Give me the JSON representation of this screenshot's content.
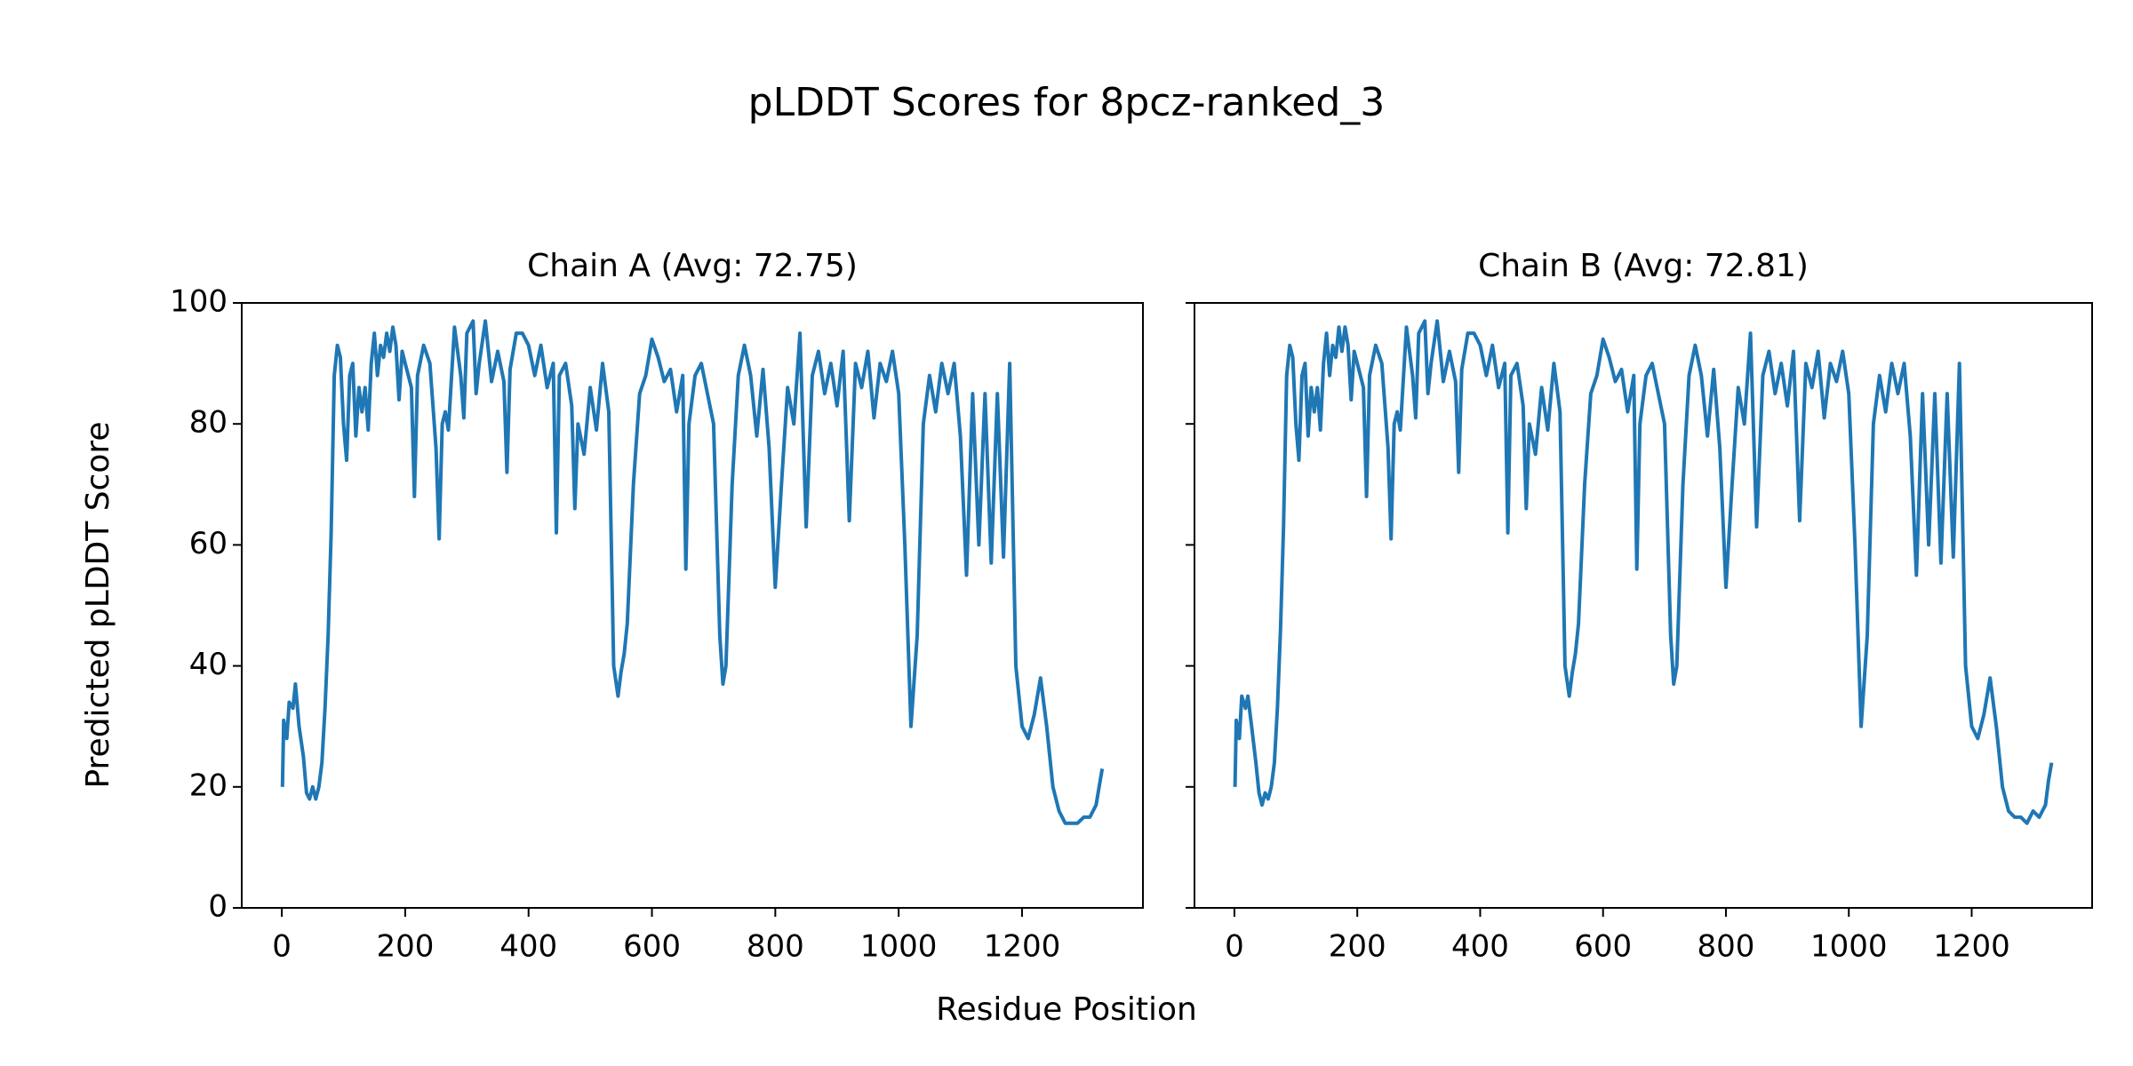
{
  "title": "pLDDT Scores for 8pcz-ranked_3",
  "x_label": "Residue Position",
  "y_label": "Predicted pLDDT Score",
  "chart_data": [
    {
      "type": "line",
      "title": "Chain A (Avg: 72.75)",
      "x": [
        1,
        3,
        8,
        12,
        18,
        22,
        28,
        35,
        40,
        45,
        50,
        55,
        60,
        65,
        70,
        75,
        80,
        85,
        90,
        95,
        100,
        105,
        110,
        115,
        120,
        125,
        130,
        135,
        140,
        145,
        150,
        155,
        160,
        165,
        170,
        175,
        180,
        185,
        190,
        195,
        200,
        210,
        215,
        220,
        230,
        240,
        250,
        255,
        260,
        265,
        270,
        280,
        290,
        295,
        300,
        310,
        315,
        320,
        330,
        340,
        350,
        360,
        365,
        370,
        380,
        390,
        400,
        410,
        420,
        430,
        440,
        445,
        450,
        460,
        470,
        475,
        480,
        490,
        500,
        510,
        520,
        530,
        538,
        545,
        550,
        555,
        560,
        570,
        580,
        590,
        600,
        610,
        620,
        630,
        640,
        650,
        655,
        660,
        670,
        680,
        690,
        700,
        710,
        715,
        720,
        730,
        740,
        750,
        760,
        770,
        780,
        790,
        800,
        810,
        820,
        830,
        840,
        850,
        860,
        870,
        880,
        890,
        900,
        910,
        920,
        930,
        940,
        950,
        960,
        970,
        980,
        990,
        1000,
        1010,
        1020,
        1030,
        1040,
        1050,
        1060,
        1070,
        1080,
        1090,
        1100,
        1110,
        1120,
        1130,
        1140,
        1150,
        1160,
        1170,
        1180,
        1190,
        1200,
        1210,
        1220,
        1230,
        1240,
        1250,
        1260,
        1270,
        1280,
        1290,
        1300,
        1310,
        1320,
        1325,
        1330
      ],
      "series": [
        {
          "name": "Chain A",
          "color": "#1f77b4",
          "values": [
            20,
            31,
            28,
            34,
            33,
            37,
            30,
            25,
            19,
            18,
            20,
            18,
            20,
            24,
            33,
            45,
            62,
            88,
            93,
            91,
            80,
            74,
            88,
            90,
            78,
            86,
            82,
            86,
            79,
            90,
            95,
            88,
            93,
            91,
            95,
            92,
            96,
            93,
            84,
            92,
            90,
            86,
            68,
            88,
            93,
            90,
            76,
            61,
            80,
            82,
            79,
            96,
            88,
            81,
            95,
            97,
            85,
            90,
            97,
            87,
            92,
            87,
            72,
            89,
            95,
            95,
            93,
            88,
            93,
            86,
            90,
            62,
            88,
            90,
            83,
            66,
            80,
            75,
            86,
            79,
            90,
            82,
            40,
            35,
            39,
            42,
            47,
            70,
            85,
            88,
            94,
            91,
            87,
            89,
            82,
            88,
            56,
            80,
            88,
            90,
            85,
            80,
            45,
            37,
            40,
            70,
            88,
            93,
            88,
            78,
            89,
            76,
            53,
            70,
            86,
            80,
            95,
            63,
            88,
            92,
            85,
            90,
            83,
            92,
            64,
            90,
            86,
            92,
            81,
            90,
            87,
            92,
            85,
            60,
            30,
            45,
            80,
            88,
            82,
            90,
            85,
            90,
            78,
            55,
            85,
            60,
            85,
            57,
            85,
            58,
            90,
            40,
            30,
            28,
            32,
            38,
            30,
            20,
            16,
            14,
            14,
            14,
            15,
            15,
            17,
            20,
            23
          ]
        }
      ],
      "xlim": [
        -65,
        1396
      ],
      "ylim": [
        0,
        100
      ],
      "xticks": [
        0,
        200,
        400,
        600,
        800,
        1000,
        1200
      ],
      "yticks": [
        0,
        20,
        40,
        60,
        80,
        100
      ]
    },
    {
      "type": "line",
      "title": "Chain B (Avg: 72.81)",
      "x": [
        1,
        3,
        8,
        12,
        18,
        22,
        28,
        35,
        40,
        45,
        50,
        55,
        60,
        65,
        70,
        75,
        80,
        85,
        90,
        95,
        100,
        105,
        110,
        115,
        120,
        125,
        130,
        135,
        140,
        145,
        150,
        155,
        160,
        165,
        170,
        175,
        180,
        185,
        190,
        195,
        200,
        210,
        215,
        220,
        230,
        240,
        250,
        255,
        260,
        265,
        270,
        280,
        290,
        295,
        300,
        310,
        315,
        320,
        330,
        340,
        350,
        360,
        365,
        370,
        380,
        390,
        400,
        410,
        420,
        430,
        440,
        445,
        450,
        460,
        470,
        475,
        480,
        490,
        500,
        510,
        520,
        530,
        538,
        545,
        550,
        555,
        560,
        570,
        580,
        590,
        600,
        610,
        620,
        630,
        640,
        650,
        655,
        660,
        670,
        680,
        690,
        700,
        710,
        715,
        720,
        730,
        740,
        750,
        760,
        770,
        780,
        790,
        800,
        810,
        820,
        830,
        840,
        850,
        860,
        870,
        880,
        890,
        900,
        910,
        920,
        930,
        940,
        950,
        960,
        970,
        980,
        990,
        1000,
        1010,
        1020,
        1030,
        1040,
        1050,
        1060,
        1070,
        1080,
        1090,
        1100,
        1110,
        1120,
        1130,
        1140,
        1150,
        1160,
        1170,
        1180,
        1190,
        1200,
        1210,
        1220,
        1230,
        1240,
        1250,
        1260,
        1270,
        1280,
        1290,
        1300,
        1310,
        1320,
        1325,
        1330
      ],
      "series": [
        {
          "name": "Chain B",
          "color": "#1f77b4",
          "values": [
            20,
            31,
            28,
            35,
            33,
            35,
            30,
            24,
            19,
            17,
            19,
            18,
            20,
            24,
            33,
            46,
            63,
            88,
            93,
            91,
            80,
            74,
            88,
            90,
            78,
            86,
            82,
            86,
            79,
            90,
            95,
            88,
            93,
            91,
            96,
            92,
            96,
            93,
            84,
            92,
            90,
            86,
            68,
            88,
            93,
            90,
            76,
            61,
            80,
            82,
            79,
            96,
            88,
            81,
            95,
            97,
            85,
            90,
            97,
            87,
            92,
            87,
            72,
            89,
            95,
            95,
            93,
            88,
            93,
            86,
            90,
            62,
            88,
            90,
            83,
            66,
            80,
            75,
            86,
            79,
            90,
            82,
            40,
            35,
            39,
            42,
            47,
            70,
            85,
            88,
            94,
            91,
            87,
            89,
            82,
            88,
            56,
            80,
            88,
            90,
            85,
            80,
            45,
            37,
            40,
            70,
            88,
            93,
            88,
            78,
            89,
            76,
            53,
            70,
            86,
            80,
            95,
            63,
            88,
            92,
            85,
            90,
            83,
            92,
            64,
            90,
            86,
            92,
            81,
            90,
            87,
            92,
            85,
            60,
            30,
            45,
            80,
            88,
            82,
            90,
            85,
            90,
            78,
            55,
            85,
            60,
            85,
            57,
            85,
            58,
            90,
            40,
            30,
            28,
            32,
            38,
            30,
            20,
            16,
            15,
            15,
            14,
            16,
            15,
            17,
            21,
            24
          ]
        }
      ],
      "xlim": [
        -65,
        1396
      ],
      "ylim": [
        0,
        100
      ],
      "xticks": [
        0,
        200,
        400,
        600,
        800,
        1000,
        1200
      ],
      "yticks": [
        0,
        20,
        40,
        60,
        80,
        100
      ],
      "ytick_labels": false
    }
  ]
}
